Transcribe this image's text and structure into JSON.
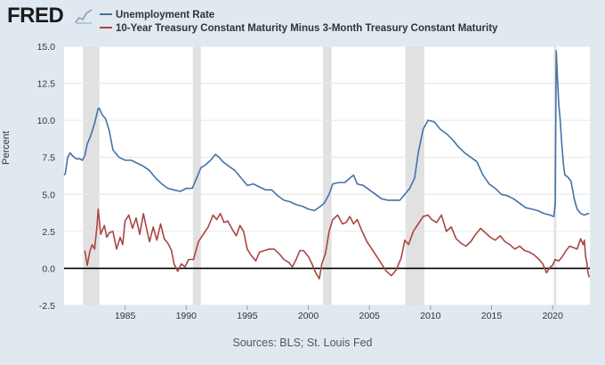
{
  "header": {
    "logo_text": "FRED",
    "logo_icon": "trend-chart-icon"
  },
  "legend": {
    "items": [
      {
        "label": "Unemployment Rate",
        "color": "#4572a7"
      },
      {
        "label": "10-Year Treasury Constant Maturity Minus 3-Month Treasury Constant Maturity",
        "color": "#aa4643"
      }
    ]
  },
  "footer": {
    "sources": "Sources: BLS; St. Louis Fed"
  },
  "chart_data": {
    "type": "line",
    "title": "",
    "xlabel": "",
    "ylabel": "Percent",
    "xlim": [
      1980.0,
      2023.05
    ],
    "ylim": [
      -2.5,
      15.0
    ],
    "y_ticks": [
      -2.5,
      0.0,
      2.5,
      5.0,
      7.5,
      10.0,
      12.5,
      15.0
    ],
    "y_tick_labels": [
      "-2.5",
      "0.0",
      "2.5",
      "5.0",
      "7.5",
      "10.0",
      "12.5",
      "15.0"
    ],
    "x_ticks": [
      1985,
      1990,
      1995,
      2000,
      2005,
      2010,
      2015,
      2020
    ],
    "x_tick_labels": [
      "1985",
      "1990",
      "1995",
      "2000",
      "2005",
      "2010",
      "2015",
      "2020"
    ],
    "reference_line": 0,
    "recessions": [
      [
        1981.55,
        1982.9
      ],
      [
        1990.55,
        1991.2
      ],
      [
        2001.2,
        2001.9
      ],
      [
        2007.95,
        2009.5
      ],
      [
        2020.1,
        2020.3
      ]
    ],
    "series": [
      {
        "name": "Unemployment Rate",
        "color": "#4572a7",
        "x": [
          1980.0,
          1980.1,
          1980.3,
          1980.5,
          1980.7,
          1981.0,
          1981.3,
          1981.5,
          1981.7,
          1981.9,
          1982.2,
          1982.5,
          1982.8,
          1982.9,
          1983.1,
          1983.4,
          1983.7,
          1984.0,
          1984.5,
          1985.0,
          1985.5,
          1986.0,
          1986.5,
          1987.0,
          1987.5,
          1988.0,
          1988.5,
          1989.0,
          1989.5,
          1990.0,
          1990.5,
          1990.8,
          1991.2,
          1991.6,
          1992.0,
          1992.4,
          1992.7,
          1993.0,
          1993.5,
          1994.0,
          1994.5,
          1995.0,
          1995.5,
          1996.0,
          1996.5,
          1997.0,
          1997.5,
          1998.0,
          1998.5,
          1999.0,
          1999.5,
          2000.0,
          2000.5,
          2001.0,
          2001.3,
          2001.7,
          2002.0,
          2002.5,
          2003.0,
          2003.4,
          2003.7,
          2004.0,
          2004.5,
          2005.0,
          2005.5,
          2006.0,
          2006.5,
          2007.0,
          2007.5,
          2007.9,
          2008.3,
          2008.7,
          2009.0,
          2009.4,
          2009.8,
          2010.3,
          2010.8,
          2011.3,
          2011.8,
          2012.3,
          2012.8,
          2013.3,
          2013.8,
          2014.3,
          2014.8,
          2015.3,
          2015.8,
          2016.3,
          2016.8,
          2017.3,
          2017.8,
          2018.3,
          2018.8,
          2019.3,
          2019.8,
          2020.1,
          2020.22,
          2020.3,
          2020.38,
          2020.5,
          2020.6,
          2020.75,
          2020.9,
          2021.0,
          2021.2,
          2021.5,
          2021.8,
          2022.0,
          2022.3,
          2022.6,
          2022.9,
          2023.0
        ],
        "values": [
          6.3,
          6.4,
          7.5,
          7.8,
          7.6,
          7.4,
          7.4,
          7.3,
          7.6,
          8.4,
          9.0,
          9.8,
          10.8,
          10.8,
          10.4,
          10.1,
          9.3,
          8.0,
          7.5,
          7.3,
          7.3,
          7.1,
          6.9,
          6.6,
          6.1,
          5.7,
          5.4,
          5.3,
          5.2,
          5.4,
          5.4,
          6.0,
          6.8,
          7.0,
          7.3,
          7.7,
          7.5,
          7.2,
          6.9,
          6.6,
          6.1,
          5.6,
          5.7,
          5.5,
          5.3,
          5.3,
          4.9,
          4.6,
          4.5,
          4.3,
          4.2,
          4.0,
          3.9,
          4.2,
          4.4,
          5.0,
          5.7,
          5.8,
          5.8,
          6.1,
          6.3,
          5.7,
          5.6,
          5.3,
          5.0,
          4.7,
          4.6,
          4.6,
          4.6,
          5.0,
          5.4,
          6.1,
          7.8,
          9.4,
          10.0,
          9.9,
          9.4,
          9.1,
          8.7,
          8.2,
          7.8,
          7.5,
          7.2,
          6.3,
          5.7,
          5.4,
          5.0,
          4.9,
          4.7,
          4.4,
          4.1,
          4.0,
          3.9,
          3.7,
          3.6,
          3.5,
          4.4,
          14.7,
          13.2,
          11.1,
          10.2,
          8.4,
          6.9,
          6.3,
          6.2,
          5.9,
          4.6,
          4.0,
          3.7,
          3.6,
          3.7,
          3.7
        ]
      },
      {
        "name": "10-Year Treasury Constant Maturity Minus 3-Month Treasury Constant Maturity",
        "color": "#aa4643",
        "x": [
          1981.7,
          1981.9,
          1982.1,
          1982.3,
          1982.5,
          1982.7,
          1982.8,
          1983.0,
          1983.3,
          1983.5,
          1983.7,
          1984.0,
          1984.3,
          1984.6,
          1984.8,
          1985.0,
          1985.3,
          1985.6,
          1985.9,
          1986.2,
          1986.5,
          1986.8,
          1987.0,
          1987.3,
          1987.6,
          1987.9,
          1988.2,
          1988.5,
          1988.8,
          1989.0,
          1989.3,
          1989.6,
          1989.9,
          1990.2,
          1990.6,
          1991.0,
          1991.4,
          1991.8,
          1992.2,
          1992.5,
          1992.8,
          1993.1,
          1993.4,
          1993.8,
          1994.1,
          1994.4,
          1994.7,
          1995.0,
          1995.3,
          1995.7,
          1996.0,
          1996.4,
          1996.8,
          1997.2,
          1997.6,
          1998.0,
          1998.4,
          1998.7,
          1999.0,
          1999.3,
          1999.6,
          2000.0,
          2000.3,
          2000.6,
          2000.9,
          2001.1,
          2001.4,
          2001.7,
          2002.0,
          2002.4,
          2002.8,
          2003.1,
          2003.4,
          2003.7,
          2004.0,
          2004.4,
          2004.8,
          2005.2,
          2005.6,
          2006.0,
          2006.4,
          2006.8,
          2007.2,
          2007.6,
          2007.9,
          2008.2,
          2008.6,
          2009.0,
          2009.4,
          2009.8,
          2010.1,
          2010.5,
          2010.9,
          2011.3,
          2011.7,
          2012.1,
          2012.5,
          2012.9,
          2013.3,
          2013.7,
          2014.1,
          2014.5,
          2014.9,
          2015.3,
          2015.7,
          2016.1,
          2016.5,
          2016.9,
          2017.3,
          2017.7,
          2018.1,
          2018.5,
          2018.9,
          2019.2,
          2019.5,
          2019.8,
          2020.0,
          2020.2,
          2020.5,
          2020.8,
          2021.1,
          2021.4,
          2021.7,
          2022.0,
          2022.3,
          2022.5,
          2022.6,
          2022.7,
          2022.8,
          2022.9,
          2023.0
        ],
        "values": [
          1.2,
          0.2,
          1.1,
          1.6,
          1.3,
          2.9,
          4.0,
          2.3,
          2.9,
          2.1,
          2.4,
          2.5,
          1.3,
          2.1,
          1.6,
          3.2,
          3.6,
          2.7,
          3.4,
          2.3,
          3.7,
          2.5,
          1.8,
          2.8,
          1.9,
          3.0,
          2.0,
          1.7,
          1.2,
          0.3,
          -0.2,
          0.3,
          0.1,
          0.6,
          0.6,
          1.8,
          2.3,
          2.8,
          3.6,
          3.3,
          3.7,
          3.1,
          3.2,
          2.6,
          2.2,
          2.9,
          2.5,
          1.3,
          0.9,
          0.5,
          1.1,
          1.2,
          1.3,
          1.3,
          1.0,
          0.6,
          0.4,
          0.1,
          0.6,
          1.2,
          1.2,
          0.8,
          0.3,
          -0.3,
          -0.7,
          0.3,
          1.0,
          2.5,
          3.3,
          3.6,
          3.0,
          3.1,
          3.5,
          3.0,
          3.3,
          2.5,
          1.8,
          1.3,
          0.8,
          0.3,
          -0.2,
          -0.5,
          -0.1,
          0.7,
          1.9,
          1.6,
          2.5,
          3.0,
          3.5,
          3.6,
          3.3,
          3.1,
          3.6,
          2.5,
          2.8,
          2.0,
          1.7,
          1.5,
          1.8,
          2.3,
          2.7,
          2.4,
          2.1,
          1.9,
          2.2,
          1.8,
          1.6,
          1.3,
          1.5,
          1.2,
          1.1,
          0.9,
          0.6,
          0.3,
          -0.3,
          0.1,
          0.2,
          0.6,
          0.5,
          0.8,
          1.2,
          1.5,
          1.4,
          1.3,
          2.0,
          1.6,
          1.9,
          0.8,
          0.4,
          -0.3,
          -0.6
        ]
      }
    ]
  }
}
